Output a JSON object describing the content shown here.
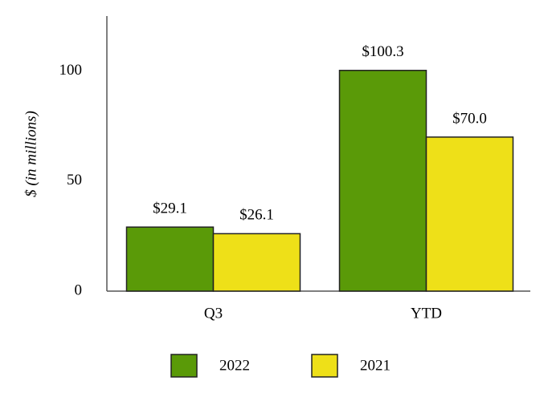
{
  "chart_data": {
    "type": "bar",
    "y_label": "$ (in millions)",
    "categories": [
      "Q3",
      "YTD"
    ],
    "series": [
      {
        "name": "2022",
        "color": "#5a9a08",
        "values": [
          29.1,
          100.3
        ],
        "value_labels": [
          "$29.1",
          "$100.3"
        ]
      },
      {
        "name": "2021",
        "color": "#eee018",
        "values": [
          26.1,
          70.0
        ],
        "value_labels": [
          "$26.1",
          "$70.0"
        ]
      }
    ],
    "ylim": [
      0,
      125
    ],
    "yticks": [
      0,
      50,
      100
    ],
    "grid": false
  }
}
